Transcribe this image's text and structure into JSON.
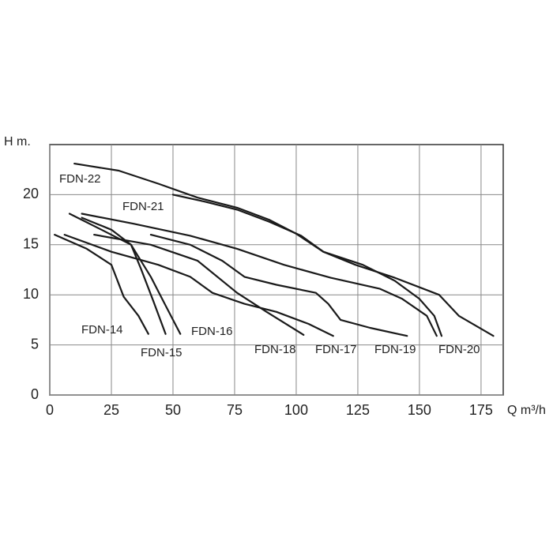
{
  "chart_data": {
    "type": "line",
    "ylabel": "H m.",
    "xlabel": "Q m³/h",
    "xlim": [
      0,
      184
    ],
    "xticks": [
      0,
      25,
      50,
      75,
      100,
      125,
      150,
      175
    ],
    "ylim": [
      0,
      25
    ],
    "yticks": [
      0,
      5,
      10,
      15,
      20
    ],
    "grid": true,
    "series": [
      {
        "name": "FDN-14",
        "color": "#1a1a1a",
        "x": [
          2,
          15,
          25,
          30,
          36,
          40
        ],
        "values": [
          16,
          14.6,
          13,
          9.8,
          7.9,
          6.1
        ]
      },
      {
        "name": "FDN-15",
        "color": "#1a1a1a",
        "x": [
          8,
          21,
          33,
          37,
          42,
          47
        ],
        "values": [
          18.1,
          16.5,
          15,
          12.6,
          9.4,
          6.1
        ]
      },
      {
        "name": "FDN-16",
        "color": "#1a1a1a",
        "x": [
          13,
          25,
          33,
          41,
          46,
          50,
          53
        ],
        "values": [
          17.7,
          16.5,
          15,
          11.8,
          9.4,
          7.5,
          6.1
        ]
      },
      {
        "name": "FDN-18",
        "color": "#1a1a1a",
        "x": [
          18,
          41,
          60,
          76,
          88,
          103
        ],
        "values": [
          16,
          15,
          13.4,
          10.2,
          8.3,
          6
        ]
      },
      {
        "name": "FDN-17",
        "color": "#1a1a1a",
        "x": [
          6,
          25,
          44,
          57,
          66,
          79,
          92,
          105,
          115
        ],
        "values": [
          16,
          14.3,
          13,
          11.8,
          10.2,
          9.1,
          8.3,
          7.1,
          5.9
        ]
      },
      {
        "name": "FDN-19",
        "color": "#1a1a1a",
        "x": [
          41,
          57,
          70,
          79,
          92,
          108,
          113,
          118,
          130,
          145
        ],
        "values": [
          16,
          15,
          13.4,
          11.8,
          11,
          10.2,
          9.1,
          7.5,
          6.7,
          5.9
        ]
      },
      {
        "name": "FDN-20",
        "color": "#1a1a1a",
        "x": [
          13,
          34,
          57,
          76,
          95,
          114,
          134,
          143,
          153,
          157
        ],
        "values": [
          18.1,
          17.1,
          15.9,
          14.6,
          13,
          11.7,
          10.6,
          9.6,
          7.9,
          5.9
        ]
      },
      {
        "name": "FDN-21",
        "color": "#1a1a1a",
        "x": [
          50,
          63,
          76,
          89,
          102,
          111,
          127,
          140,
          150,
          156,
          159
        ],
        "values": [
          20,
          19.3,
          18.5,
          17.3,
          15.9,
          14.3,
          13,
          11.4,
          9.6,
          7.9,
          5.9
        ]
      },
      {
        "name": "FDN-22",
        "color": "#1a1a1a",
        "x": [
          10,
          28,
          44,
          60,
          76,
          89,
          100,
          111,
          124,
          140,
          158,
          166,
          180
        ],
        "values": [
          23.1,
          22.4,
          21.1,
          19.7,
          18.7,
          17.5,
          16.1,
          14.3,
          13,
          11.7,
          10,
          7.9,
          5.9
        ]
      }
    ]
  }
}
